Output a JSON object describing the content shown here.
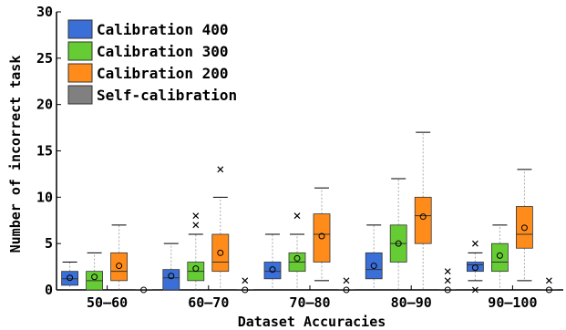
{
  "chart_data": {
    "type": "boxplot",
    "xlabel": "Dataset Accuracies",
    "ylabel": "Number of incorrect task",
    "ylim": [
      0,
      30
    ],
    "yticks": [
      0,
      5,
      10,
      15,
      20,
      25,
      30
    ],
    "categories": [
      "50–60",
      "60–70",
      "70–80",
      "80–90",
      "90–100"
    ],
    "reference_line": {
      "y": 0,
      "style": "dashed"
    },
    "legend": {
      "position": "top-left"
    },
    "series": [
      {
        "name": "Calibration 400",
        "color": "#3a6fd8",
        "boxes": [
          {
            "whislo": 0,
            "q1": 0.5,
            "med": 1.2,
            "q3": 2,
            "whishi": 3,
            "mean": 1.3,
            "fliers": []
          },
          {
            "whislo": 0,
            "q1": 0,
            "med": 1.3,
            "q3": 2.2,
            "whishi": 5,
            "mean": 1.5,
            "fliers": []
          },
          {
            "whislo": 0,
            "q1": 1.2,
            "med": 2,
            "q3": 3,
            "whishi": 6,
            "mean": 2.2,
            "fliers": []
          },
          {
            "whislo": 0,
            "q1": 1.2,
            "med": 2.2,
            "q3": 4,
            "whishi": 7,
            "mean": 2.6,
            "fliers": []
          },
          {
            "whislo": 1,
            "q1": 2,
            "med": 2.7,
            "q3": 3,
            "whishi": 4,
            "mean": 2.4,
            "fliers": [
              0,
              5
            ]
          }
        ]
      },
      {
        "name": "Calibration 300",
        "color": "#66cc33",
        "boxes": [
          {
            "whislo": 0,
            "q1": 0,
            "med": 1,
            "q3": 2,
            "whishi": 4,
            "mean": 1.4,
            "fliers": []
          },
          {
            "whislo": 0,
            "q1": 1,
            "med": 2,
            "q3": 3,
            "whishi": 6,
            "mean": 2.3,
            "fliers": [
              7,
              8
            ]
          },
          {
            "whislo": 0,
            "q1": 2,
            "med": 3,
            "q3": 4,
            "whishi": 6,
            "mean": 3.4,
            "fliers": [
              8
            ]
          },
          {
            "whislo": 0,
            "q1": 3,
            "med": 5,
            "q3": 7,
            "whishi": 12,
            "mean": 5,
            "fliers": []
          },
          {
            "whislo": 0,
            "q1": 2,
            "med": 3,
            "q3": 5,
            "whishi": 7,
            "mean": 3.7,
            "fliers": []
          }
        ]
      },
      {
        "name": "Calibration 200",
        "color": "#ff8c1a",
        "boxes": [
          {
            "whislo": 0,
            "q1": 1,
            "med": 2,
            "q3": 4,
            "whishi": 7,
            "mean": 2.6,
            "fliers": []
          },
          {
            "whislo": 0,
            "q1": 2,
            "med": 3,
            "q3": 6,
            "whishi": 10,
            "mean": 4,
            "fliers": [
              13
            ]
          },
          {
            "whislo": 1,
            "q1": 3,
            "med": 6,
            "q3": 8.2,
            "whishi": 11,
            "mean": 5.8,
            "fliers": []
          },
          {
            "whislo": 0,
            "q1": 5,
            "med": 8,
            "q3": 10,
            "whishi": 17,
            "mean": 7.9,
            "fliers": []
          },
          {
            "whislo": 1,
            "q1": 4.5,
            "med": 6,
            "q3": 9,
            "whishi": 13,
            "mean": 6.7,
            "fliers": []
          }
        ]
      },
      {
        "name": "Self-calibration",
        "color": "#808080",
        "boxes": [
          {
            "whislo": 0,
            "q1": 0,
            "med": 0,
            "q3": 0,
            "whishi": 0,
            "mean": 0,
            "fliers": []
          },
          {
            "whislo": 0,
            "q1": 0,
            "med": 0,
            "q3": 0,
            "whishi": 0,
            "mean": 0,
            "fliers": [
              1
            ]
          },
          {
            "whislo": 0,
            "q1": 0,
            "med": 0,
            "q3": 0,
            "whishi": 0,
            "mean": 0,
            "fliers": [
              1
            ]
          },
          {
            "whislo": 0,
            "q1": 0,
            "med": 0,
            "q3": 0,
            "whishi": 0,
            "mean": 0,
            "fliers": [
              1,
              2
            ]
          },
          {
            "whislo": 0,
            "q1": 0,
            "med": 0,
            "q3": 0,
            "whishi": 0,
            "mean": 0,
            "fliers": [
              1
            ]
          }
        ]
      }
    ]
  }
}
